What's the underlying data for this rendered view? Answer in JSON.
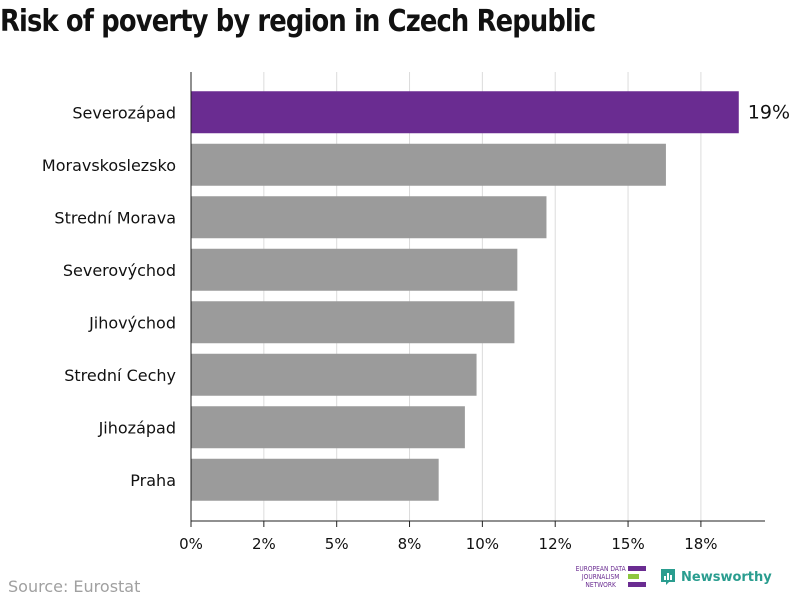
{
  "title": "Risk of poverty by region in Czech Republic",
  "source": "Source: Eurostat",
  "logos": {
    "ejn": "EUROPEAN DATA JOURNALISM NETWORK",
    "newsworthy": "Newsworthy"
  },
  "colors": {
    "highlight": "#6a2c91",
    "bar": "#9b9b9b",
    "grid": "#dcdcdc",
    "axis": "#222222",
    "ejn_purple": "#6a2c91",
    "ejn_green": "#8dc63f",
    "newsworthy_teal": "#2a9d8f"
  },
  "chart_data": {
    "type": "bar",
    "orientation": "horizontal",
    "categories": [
      "Severozápad",
      "Moravskoslezsko",
      "Strední Morava",
      "Severovýchod",
      "Jihovýchod",
      "Strední Cechy",
      "Jihozápad",
      "Praha"
    ],
    "values": [
      18.8,
      16.3,
      12.2,
      11.2,
      11.1,
      9.8,
      9.4,
      8.5
    ],
    "highlight_index": 0,
    "highlight_label": "19%",
    "xticks": [
      0,
      2.5,
      5,
      7.5,
      10,
      12.5,
      15,
      17.5
    ],
    "xtick_labels": [
      "0%",
      "2%",
      "5%",
      "8%",
      "10%",
      "12%",
      "15%",
      "18%"
    ],
    "xlim": [
      0,
      19.7
    ],
    "grid": true,
    "title": "Risk of poverty by region in Czech Republic",
    "xlabel": "",
    "ylabel": ""
  }
}
